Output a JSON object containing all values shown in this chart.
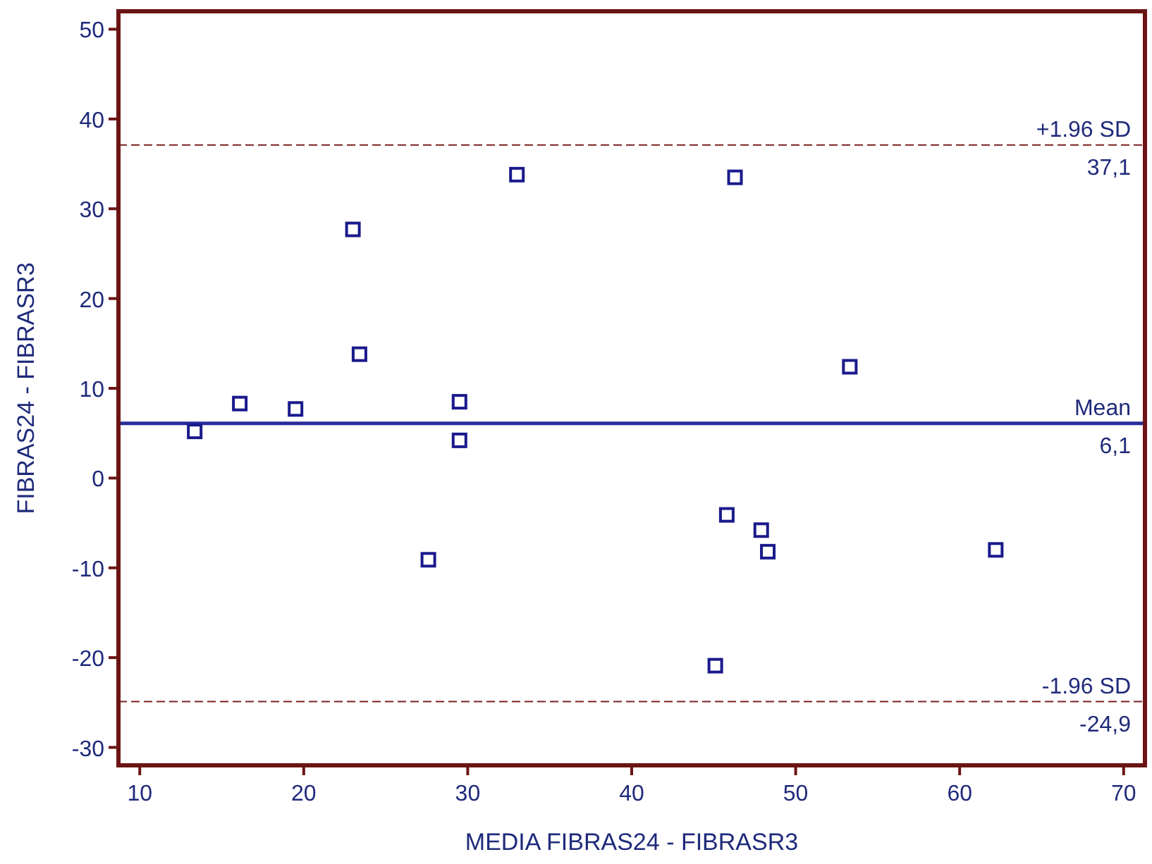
{
  "chart_data": {
    "type": "scatter",
    "xlabel": "MEDIA FIBRAS24 - FIBRASR3",
    "ylabel": "FIBRAS24 - FIBRASR3",
    "x": [
      13.35,
      16.1,
      19.5,
      23.0,
      23.4,
      27.6,
      29.5,
      29.5,
      33.0,
      45.1,
      45.8,
      46.3,
      47.9,
      48.3,
      53.3,
      62.2
    ],
    "series": [
      {
        "color": "#1a1a8c",
        "values": [
          5.2,
          8.3,
          7.7,
          27.7,
          13.8,
          -9.1,
          8.5,
          4.2,
          33.8,
          -20.9,
          -4.1,
          33.5,
          -5.8,
          -8.2,
          12.4,
          -8.0
        ]
      }
    ],
    "marker": "square",
    "grid": false,
    "xlim": [
      8.7,
      71.3
    ],
    "xticks": [
      10,
      20,
      30,
      40,
      50,
      60,
      70
    ],
    "ylim": [
      -32,
      52
    ],
    "yticks": [
      -30,
      -20,
      -10,
      0,
      10,
      20,
      30,
      40,
      50
    ],
    "ref_lines": [
      {
        "axis": "y",
        "value": 37.1,
        "label": "+1.96 SD",
        "color": "#7a2020",
        "line_style": "dashed"
      },
      {
        "axis": "y",
        "value": 6.1,
        "label": "Mean",
        "color": "#2b2b9a",
        "line_style": "solid"
      },
      {
        "axis": "y",
        "value": -24.9,
        "label": "-1.96 SD",
        "color": "#7a2020",
        "line_style": "dashed"
      }
    ],
    "annotations": [
      {
        "text": "37,1",
        "y": 37.1
      },
      {
        "text": "6,1",
        "y": 6.1
      },
      {
        "text": "-24,9",
        "y": -24.9
      }
    ]
  }
}
